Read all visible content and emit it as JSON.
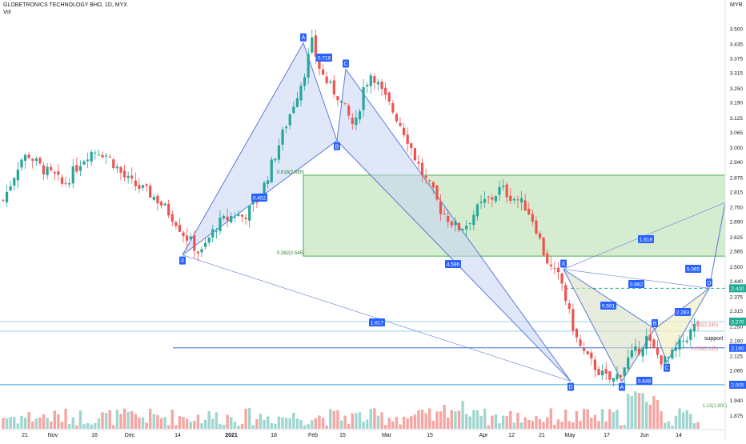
{
  "header": {
    "symbol_line": "GLOBETRONICS TECHNOLOGY BHD, 1D, MYX",
    "vol_label": "Vol"
  },
  "currency": "MYR",
  "colors": {
    "up": "#26a69a",
    "down": "#ef5350",
    "vol_up": "#9fd6cf",
    "vol_down": "#f5a6a3",
    "harmonic_line": "#5b7bd6",
    "harmonic_fill": "#c7d3f4",
    "zone_fill": "#c8e6c0",
    "zone_line": "#4caf50",
    "label_bg": "#2962ff",
    "axis_text": "#131722",
    "hline": "#3aa6d8"
  },
  "chart_data": {
    "type": "candlestick",
    "title": "GLOBETRONICS TECHNOLOGY BHD, 1D, MYX",
    "ylabel": "MYR",
    "ylim": [
      1.82,
      3.56
    ],
    "y_ticks": [
      "3.500",
      "3.435",
      "3.375",
      "3.315",
      "3.250",
      "3.190",
      "3.125",
      "3.065",
      "3.000",
      "2.940",
      "2.875",
      "2.815",
      "2.750",
      "2.690",
      "2.625",
      "2.565",
      "2.500",
      "2.440",
      "2.375",
      "2.315",
      "2.250",
      "2.190",
      "2.125",
      "2.065",
      "2.000",
      "1.940",
      "1.875"
    ],
    "x_ticks": [
      "21",
      "Nov",
      "16",
      "Dec",
      "14",
      "2021",
      "18",
      "Feb",
      "15",
      "Mar",
      "15",
      "Apr",
      "12",
      "21",
      "May",
      "17",
      "Jun",
      "14"
    ],
    "price_badges": [
      {
        "text": "2.410",
        "value": 2.41,
        "color": "#22ab94"
      },
      {
        "text": "2.270",
        "value": 2.27,
        "color": "#22ab94"
      },
      {
        "text": "2.160",
        "value": 2.16,
        "color": "#2962ff"
      },
      {
        "text": "2.005",
        "value": 2.005,
        "color": "#2962ff"
      }
    ],
    "series_close_sample": [
      2.78,
      2.86,
      2.95,
      2.97,
      2.93,
      2.9,
      2.88,
      2.84,
      2.89,
      2.94,
      2.98,
      2.99,
      2.97,
      2.93,
      2.88,
      2.85,
      2.83,
      2.81,
      2.78,
      2.74,
      2.7,
      2.64,
      2.6,
      2.55,
      2.62,
      2.68,
      2.7,
      2.72,
      2.71,
      2.75,
      2.8,
      2.9,
      3.0,
      3.1,
      3.2,
      3.3,
      3.44,
      3.32,
      3.26,
      3.22,
      3.15,
      3.08,
      3.25,
      3.32,
      3.24,
      3.18,
      3.12,
      3.05,
      2.96,
      2.88,
      2.82,
      2.74,
      2.7,
      2.66,
      2.68,
      2.73,
      2.77,
      2.79,
      2.83,
      2.8,
      2.78,
      2.75,
      2.68,
      2.56,
      2.48,
      2.45,
      2.3,
      2.18,
      2.12,
      2.08,
      2.04,
      2.02,
      2.06,
      2.12,
      2.15,
      2.2,
      2.14,
      2.1,
      2.13,
      2.18,
      2.22,
      2.27
    ],
    "harmonic_labels": [
      {
        "text": "X",
        "value": 2.55
      },
      {
        "text": "A",
        "value": 3.44
      },
      {
        "text": "B",
        "value": 3.03
      },
      {
        "text": "C",
        "value": 3.33
      },
      {
        "text": "D",
        "value": 2.02
      },
      {
        "text": "X",
        "value": 2.49
      },
      {
        "text": "A",
        "value": 2.02
      },
      {
        "text": "B",
        "value": 2.24
      },
      {
        "text": "C",
        "value": 2.1
      },
      {
        "text": "D",
        "value": 2.41
      }
    ],
    "ratio_labels": [
      "0.718",
      "0.452",
      "4.596",
      "1.617",
      "0.501",
      "0.882",
      "0.848",
      "1.618",
      "5.065",
      "2.283"
    ],
    "fib_labels": [
      "0.618(2.885)",
      "0.382(2.545)",
      "0.382(2.240)",
      "0.618(2.140)",
      "1.13(1.900)"
    ],
    "annotations": [
      "support"
    ]
  }
}
